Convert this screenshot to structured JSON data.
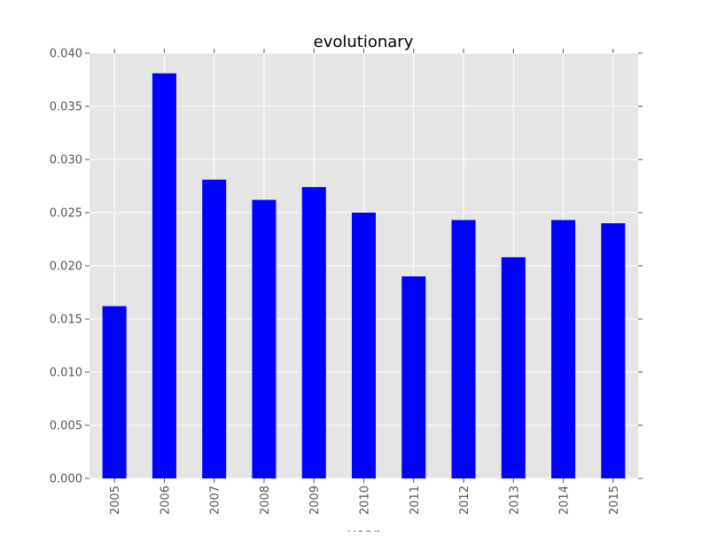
{
  "chart_data": {
    "type": "bar",
    "title": "evolutionary",
    "xlabel": "year",
    "ylabel": "",
    "categories": [
      "2005",
      "2006",
      "2007",
      "2008",
      "2009",
      "2010",
      "2011",
      "2012",
      "2013",
      "2014",
      "2015"
    ],
    "values": [
      0.0162,
      0.0381,
      0.0281,
      0.0262,
      0.0274,
      0.025,
      0.019,
      0.0243,
      0.0208,
      0.0243,
      0.024
    ],
    "ylim": [
      0,
      0.04
    ],
    "yticks": [
      "0.000",
      "0.005",
      "0.010",
      "0.015",
      "0.020",
      "0.025",
      "0.030",
      "0.035",
      "0.040"
    ],
    "grid": true,
    "bar_color": "#0000ff",
    "background_color": "#e5e5e5",
    "grid_color": "#ffffff",
    "tick_label_color": "#555555"
  }
}
